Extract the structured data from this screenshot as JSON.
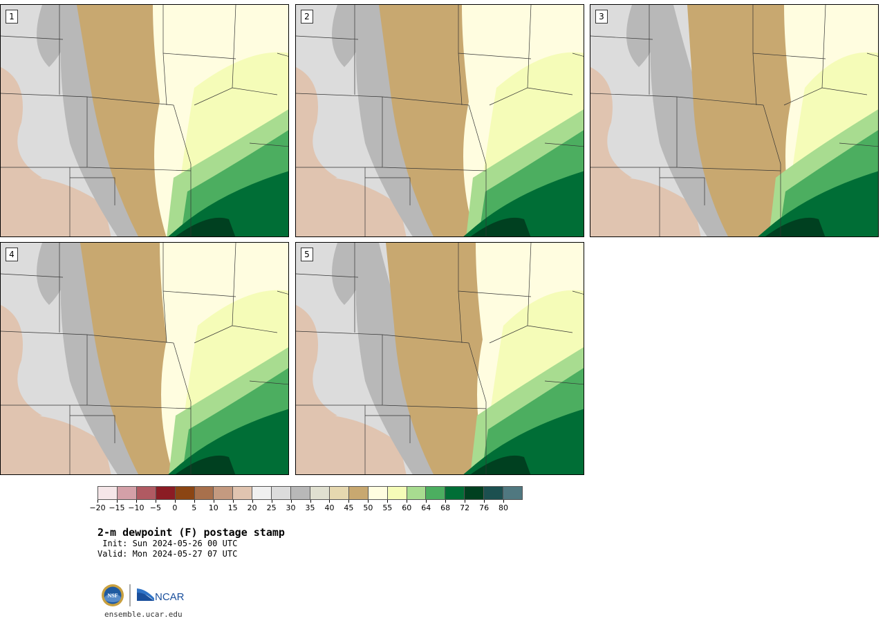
{
  "panels": [
    {
      "label": "1"
    },
    {
      "label": "2"
    },
    {
      "label": "3"
    },
    {
      "label": "4"
    },
    {
      "label": "5"
    }
  ],
  "colorbar": {
    "colors": [
      "#f5e6e8",
      "#d4a0a8",
      "#b05a62",
      "#8b1c24",
      "#8b4513",
      "#a8704c",
      "#c49a80",
      "#e0c4b0",
      "#f0f0f0",
      "#dcdcdc",
      "#b8b8b8",
      "#e0e0d0",
      "#e6d8b0",
      "#c8a870",
      "#fffde0",
      "#f5fcb8",
      "#a8dc90",
      "#4cae60",
      "#006e36",
      "#004020",
      "#1c5050",
      "#507880"
    ],
    "tick_labels": [
      "−20",
      "−15",
      "−10",
      "−5",
      "0",
      "5",
      "10",
      "15",
      "20",
      "25",
      "30",
      "35",
      "40",
      "45",
      "50",
      "55",
      "60",
      "64",
      "68",
      "72",
      "76",
      "80"
    ]
  },
  "title": "2-m dewpoint (F) postage stamp",
  "init": " Init: Sun 2024-05-26 00 UTC",
  "valid": "Valid: Mon 2024-05-27 07 UTC",
  "logo": {
    "nsf": "NSF",
    "ncar": "NCAR"
  },
  "url": "ensemble.ucar.edu"
}
